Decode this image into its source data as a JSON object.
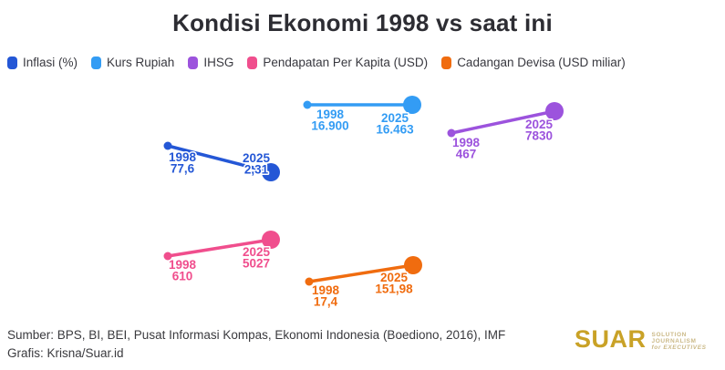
{
  "title": "Kondisi Ekonomi 1998 vs saat ini",
  "legend": {
    "position": "top-left",
    "items": [
      {
        "label": "Inflasi (%)",
        "color": "#2457d6"
      },
      {
        "label": "Kurs Rupiah",
        "color": "#339cf4"
      },
      {
        "label": "IHSG",
        "color": "#9c53dd"
      },
      {
        "label": "Pendapatan Per Kapita (USD)",
        "color": "#f04e8d"
      },
      {
        "label": "Cadangan Devisa (USD miliar)",
        "color": "#f06c0f"
      }
    ]
  },
  "chart_data": {
    "type": "line",
    "variant": "slope-dumbbell-small-multiples",
    "title": "Kondisi Ekonomi 1998 vs saat ini",
    "categories": [
      "1998",
      "2025"
    ],
    "series": [
      {
        "name": "Inflasi (%)",
        "color": "#2457d6",
        "values": [
          77.6,
          2.31
        ],
        "value_labels": [
          "77,6",
          "2,31"
        ]
      },
      {
        "name": "Kurs Rupiah",
        "color": "#339cf4",
        "values": [
          16900,
          16463
        ],
        "value_labels": [
          "16.900",
          "16.463"
        ]
      },
      {
        "name": "IHSG",
        "color": "#9c53dd",
        "values": [
          467,
          7830
        ],
        "value_labels": [
          "467",
          "7830"
        ]
      },
      {
        "name": "Pendapatan Per Kapita (USD)",
        "color": "#f04e8d",
        "values": [
          610,
          5027
        ],
        "value_labels": [
          "610",
          "5027"
        ]
      },
      {
        "name": "Cadangan Devisa (USD miliar)",
        "color": "#f06c0f",
        "values": [
          17.4,
          151.98
        ],
        "value_labels": [
          "17,4",
          "151,98"
        ]
      }
    ],
    "grid": false,
    "axes_visible": false,
    "point_style": {
      "start_marker": "small-dot",
      "end_marker": "large-dot"
    },
    "legend_position": "top-left"
  },
  "footer": {
    "source": "Sumber: BPS, BI, BEI, Pusat Informasi Kompas, Ekonomi Indonesia (Boediono, 2016), IMF",
    "credit": "Grafis: Krisna/Suar.id"
  },
  "logo": {
    "name": "SUAR",
    "tagline_line1": "SOLUTION JOURNALISM",
    "tagline_line2": "for EXECUTIVES",
    "color": "#c9a227"
  },
  "colors": {
    "background": "#ffffff",
    "title_text": "#2d2d33",
    "legend_text": "#38383f",
    "footer_text": "#3a3a3e"
  }
}
